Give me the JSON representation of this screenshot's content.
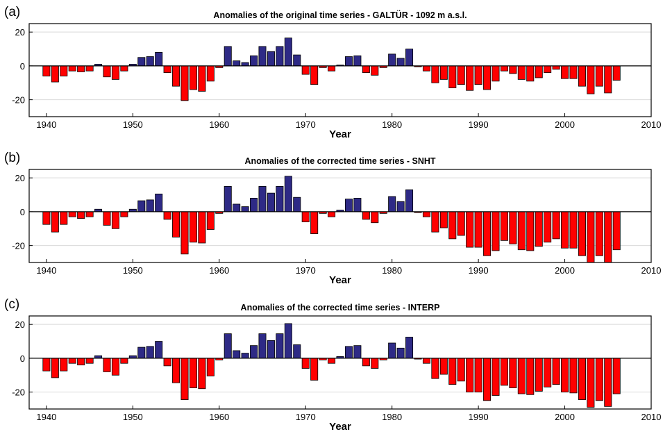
{
  "colors": {
    "positive": "#2e2a86",
    "negative": "#ff0000",
    "grid": "#d9d9d9",
    "zero_line": "#000000"
  },
  "chart_data": [
    {
      "type": "bar",
      "panel_label": "(a)",
      "title": "Anomalies of the original time series - GALTÜR - 1092 m a.s.l.",
      "xlabel": "Year",
      "ylabel": "",
      "xlim": [
        1938,
        2010
      ],
      "ylim": [
        -30,
        25
      ],
      "xticks": [
        1940,
        1950,
        1960,
        1970,
        1980,
        1990,
        2000,
        2010
      ],
      "yticks": [
        -20,
        0,
        20
      ],
      "grid": "horizontal",
      "x": [
        1940,
        1941,
        1942,
        1943,
        1944,
        1945,
        1946,
        1947,
        1948,
        1949,
        1950,
        1951,
        1952,
        1953,
        1954,
        1955,
        1956,
        1957,
        1958,
        1959,
        1960,
        1961,
        1962,
        1963,
        1964,
        1965,
        1966,
        1967,
        1968,
        1969,
        1970,
        1971,
        1972,
        1973,
        1974,
        1975,
        1976,
        1977,
        1978,
        1979,
        1980,
        1981,
        1982,
        1983,
        1984,
        1985,
        1986,
        1987,
        1988,
        1989,
        1990,
        1991,
        1992,
        1993,
        1994,
        1995,
        1996,
        1997,
        1998,
        1999,
        2000,
        2001,
        2002,
        2003,
        2004,
        2005,
        2006
      ],
      "values": [
        -6,
        -9.5,
        -6,
        -3,
        -3.5,
        -3,
        1,
        -6.5,
        -8,
        -3,
        1,
        5,
        5.5,
        8,
        -4,
        -12,
        -20.5,
        -14,
        -15,
        -9,
        -1,
        11.5,
        3,
        2,
        6,
        11.5,
        8.5,
        11.5,
        16.5,
        6.5,
        -5,
        -11,
        -1,
        -3,
        0.5,
        5.5,
        6,
        -4,
        -5.5,
        -1,
        7,
        4.5,
        10,
        -0.5,
        -3,
        -10,
        -8,
        -13,
        -11,
        -14.5,
        -11,
        -14,
        -9,
        -3,
        -4.5,
        -8,
        -9,
        -7,
        -4,
        -2,
        -7.5,
        -7.5,
        -12,
        -16.5,
        -12,
        -16,
        -8.5
      ]
    },
    {
      "type": "bar",
      "panel_label": "(b)",
      "title": "Anomalies of the corrected time series - SNHT",
      "xlabel": "Year",
      "ylabel": "",
      "xlim": [
        1938,
        2010
      ],
      "ylim": [
        -30,
        25
      ],
      "xticks": [
        1940,
        1950,
        1960,
        1970,
        1980,
        1990,
        2000,
        2010
      ],
      "yticks": [
        -20,
        0,
        20
      ],
      "grid": "horizontal",
      "x": [
        1940,
        1941,
        1942,
        1943,
        1944,
        1945,
        1946,
        1947,
        1948,
        1949,
        1950,
        1951,
        1952,
        1953,
        1954,
        1955,
        1956,
        1957,
        1958,
        1959,
        1960,
        1961,
        1962,
        1963,
        1964,
        1965,
        1966,
        1967,
        1968,
        1969,
        1970,
        1971,
        1972,
        1973,
        1974,
        1975,
        1976,
        1977,
        1978,
        1979,
        1980,
        1981,
        1982,
        1983,
        1984,
        1985,
        1986,
        1987,
        1988,
        1989,
        1990,
        1991,
        1992,
        1993,
        1994,
        1995,
        1996,
        1997,
        1998,
        1999,
        2000,
        2001,
        2002,
        2003,
        2004,
        2005,
        2006
      ],
      "values": [
        -7.5,
        -12,
        -7.5,
        -3,
        -4,
        -3,
        1.5,
        -8,
        -10,
        -3,
        1.5,
        6.5,
        7,
        10.5,
        -4.5,
        -15,
        -25,
        -18,
        -18.5,
        -10.5,
        -1,
        15,
        4.5,
        3,
        8,
        15,
        11,
        15,
        21,
        8.5,
        -6,
        -13,
        -1,
        -3,
        1,
        7.5,
        8,
        -4.5,
        -6.5,
        -1,
        9,
        6,
        13,
        -0.5,
        -3,
        -12,
        -9.5,
        -16,
        -14,
        -21,
        -21,
        -26,
        -23,
        -17,
        -19,
        -22.5,
        -23,
        -20.5,
        -18,
        -16,
        -21.5,
        -21.5,
        -26,
        -30,
        -26,
        -30,
        -22.5
      ]
    },
    {
      "type": "bar",
      "panel_label": "(c)",
      "title": "Anomalies of the corrected time series - INTERP",
      "xlabel": "Year",
      "ylabel": "",
      "xlim": [
        1938,
        2010
      ],
      "ylim": [
        -30,
        25
      ],
      "xticks": [
        1940,
        1950,
        1960,
        1970,
        1980,
        1990,
        2000,
        2010
      ],
      "yticks": [
        -20,
        0,
        20
      ],
      "grid": "horizontal",
      "x": [
        1940,
        1941,
        1942,
        1943,
        1944,
        1945,
        1946,
        1947,
        1948,
        1949,
        1950,
        1951,
        1952,
        1953,
        1954,
        1955,
        1956,
        1957,
        1958,
        1959,
        1960,
        1961,
        1962,
        1963,
        1964,
        1965,
        1966,
        1967,
        1968,
        1969,
        1970,
        1971,
        1972,
        1973,
        1974,
        1975,
        1976,
        1977,
        1978,
        1979,
        1980,
        1981,
        1982,
        1983,
        1984,
        1985,
        1986,
        1987,
        1988,
        1989,
        1990,
        1991,
        1992,
        1993,
        1994,
        1995,
        1996,
        1997,
        1998,
        1999,
        2000,
        2001,
        2002,
        2003,
        2004,
        2005,
        2006
      ],
      "values": [
        -7.5,
        -11.5,
        -7.5,
        -3,
        -4,
        -3,
        1.5,
        -8,
        -10,
        -3,
        1.5,
        6.5,
        7,
        10,
        -4.5,
        -14.5,
        -24.5,
        -17.5,
        -18,
        -10.5,
        -1,
        14.5,
        4.5,
        3,
        7.5,
        14.5,
        10.5,
        14.5,
        20.5,
        8,
        -6,
        -13,
        -1,
        -3,
        1,
        7,
        7.5,
        -4.5,
        -6,
        -1,
        9,
        6,
        12.5,
        -0.5,
        -3,
        -12,
        -9.5,
        -15.5,
        -13.5,
        -20,
        -20,
        -25,
        -22,
        -16,
        -17.5,
        -21,
        -21.5,
        -19.5,
        -17,
        -15.5,
        -20,
        -20.5,
        -24.5,
        -29,
        -25,
        -28.5,
        -21
      ]
    }
  ]
}
